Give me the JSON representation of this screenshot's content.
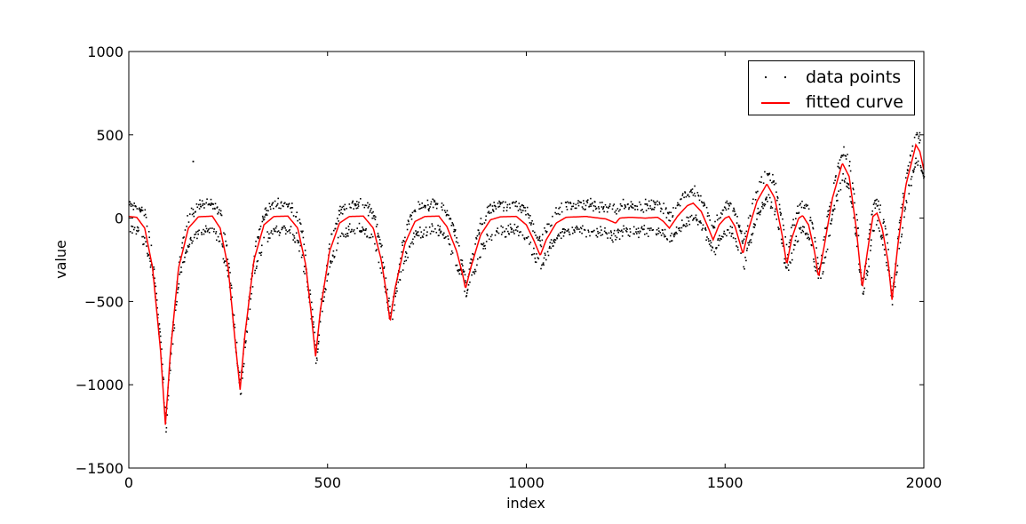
{
  "chart_data": {
    "type": "scatter+line",
    "title": "",
    "xlabel": "index",
    "ylabel": "value",
    "xlim": [
      0,
      2000
    ],
    "ylim": [
      -1500,
      1000
    ],
    "xticks": [
      0,
      500,
      1000,
      1500,
      2000
    ],
    "xtick_labels": [
      "0",
      "500",
      "1000",
      "1500",
      "2000"
    ],
    "yticks": [
      -1500,
      -1000,
      -500,
      0,
      500,
      1000
    ],
    "ytick_labels": [
      "−1500",
      "−1000",
      "−500",
      "0",
      "500",
      "1000"
    ],
    "grid": false,
    "legend_position": "upper right",
    "legend": [
      {
        "label": "data points",
        "marker": "dots",
        "color": "#000000"
      },
      {
        "label": "fitted curve",
        "marker": "line",
        "color": "#ff0000"
      }
    ],
    "series": [
      {
        "name": "fitted curve",
        "color": "#ff0000",
        "keypoints": [
          [
            0,
            10
          ],
          [
            20,
            5
          ],
          [
            40,
            -60
          ],
          [
            60,
            -300
          ],
          [
            80,
            -800
          ],
          [
            92,
            -1240
          ],
          [
            105,
            -800
          ],
          [
            125,
            -300
          ],
          [
            150,
            -60
          ],
          [
            175,
            8
          ],
          [
            210,
            12
          ],
          [
            230,
            -60
          ],
          [
            250,
            -300
          ],
          [
            268,
            -750
          ],
          [
            280,
            -1030
          ],
          [
            292,
            -700
          ],
          [
            315,
            -250
          ],
          [
            340,
            -40
          ],
          [
            365,
            10
          ],
          [
            400,
            12
          ],
          [
            425,
            -60
          ],
          [
            445,
            -280
          ],
          [
            460,
            -600
          ],
          [
            470,
            -830
          ],
          [
            482,
            -550
          ],
          [
            505,
            -200
          ],
          [
            530,
            -30
          ],
          [
            555,
            10
          ],
          [
            590,
            12
          ],
          [
            615,
            -60
          ],
          [
            635,
            -250
          ],
          [
            650,
            -480
          ],
          [
            657,
            -625
          ],
          [
            670,
            -420
          ],
          [
            695,
            -150
          ],
          [
            720,
            -20
          ],
          [
            745,
            10
          ],
          [
            780,
            12
          ],
          [
            800,
            -50
          ],
          [
            825,
            -200
          ],
          [
            840,
            -340
          ],
          [
            847,
            -425
          ],
          [
            860,
            -300
          ],
          [
            885,
            -100
          ],
          [
            910,
            -10
          ],
          [
            935,
            8
          ],
          [
            975,
            10
          ],
          [
            1000,
            -40
          ],
          [
            1020,
            -140
          ],
          [
            1035,
            -225
          ],
          [
            1050,
            -130
          ],
          [
            1075,
            -30
          ],
          [
            1100,
            5
          ],
          [
            1150,
            10
          ],
          [
            1200,
            -5
          ],
          [
            1225,
            -30
          ],
          [
            1235,
            0
          ],
          [
            1260,
            5
          ],
          [
            1300,
            0
          ],
          [
            1330,
            5
          ],
          [
            1345,
            -20
          ],
          [
            1360,
            -60
          ],
          [
            1380,
            10
          ],
          [
            1405,
            75
          ],
          [
            1420,
            90
          ],
          [
            1440,
            40
          ],
          [
            1458,
            -60
          ],
          [
            1470,
            -130
          ],
          [
            1485,
            -40
          ],
          [
            1500,
            0
          ],
          [
            1510,
            10
          ],
          [
            1525,
            -50
          ],
          [
            1545,
            -215
          ],
          [
            1560,
            -60
          ],
          [
            1580,
            100
          ],
          [
            1605,
            205
          ],
          [
            1625,
            120
          ],
          [
            1645,
            -120
          ],
          [
            1655,
            -280
          ],
          [
            1668,
            -120
          ],
          [
            1685,
            0
          ],
          [
            1695,
            15
          ],
          [
            1710,
            -40
          ],
          [
            1725,
            -200
          ],
          [
            1735,
            -355
          ],
          [
            1750,
            -160
          ],
          [
            1770,
            120
          ],
          [
            1795,
            330
          ],
          [
            1812,
            250
          ],
          [
            1830,
            -60
          ],
          [
            1845,
            -420
          ],
          [
            1858,
            -200
          ],
          [
            1872,
            10
          ],
          [
            1882,
            30
          ],
          [
            1895,
            -60
          ],
          [
            1910,
            -260
          ],
          [
            1920,
            -490
          ],
          [
            1935,
            -150
          ],
          [
            1955,
            200
          ],
          [
            1980,
            440
          ],
          [
            1990,
            400
          ],
          [
            2000,
            290
          ]
        ]
      },
      {
        "name": "data points",
        "color": "#000000",
        "count": 2000,
        "description": "noisy samples scattered around the fitted curve in two bands (~+/-90 around baseline), with one outlier near (160, 345)",
        "outliers": [
          [
            160,
            345
          ]
        ]
      }
    ]
  }
}
